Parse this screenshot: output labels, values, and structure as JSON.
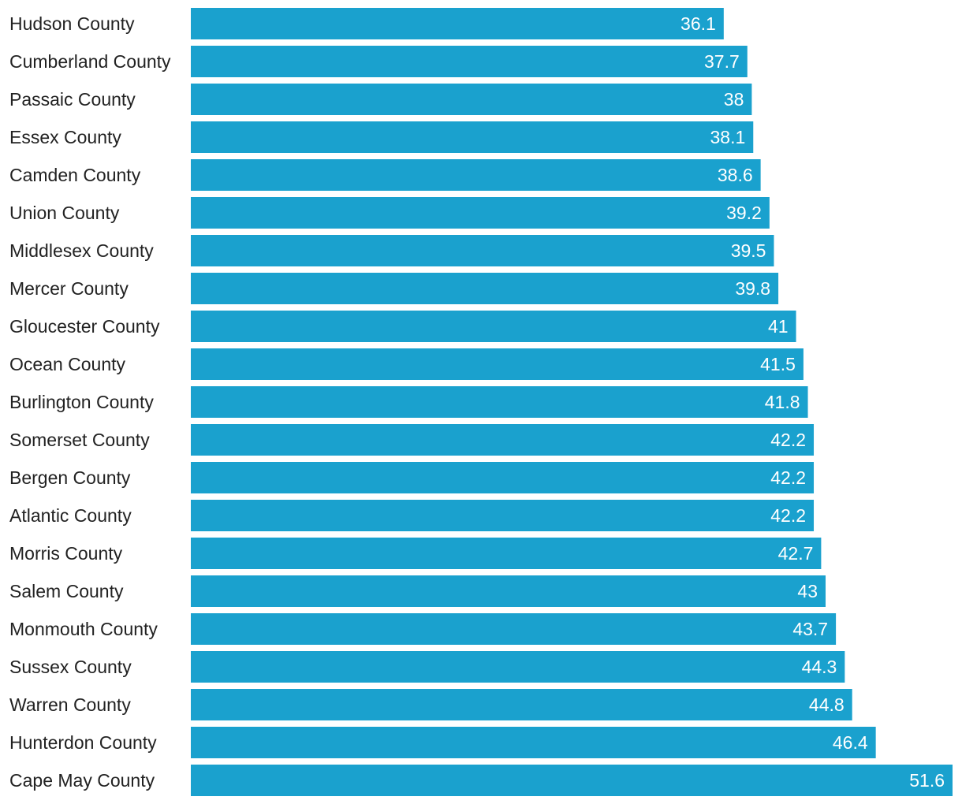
{
  "chart_data": {
    "type": "bar",
    "orientation": "horizontal",
    "categories": [
      "Hudson County",
      "Cumberland County",
      "Passaic County",
      "Essex County",
      "Camden County",
      "Union County",
      "Middlesex County",
      "Mercer County",
      "Gloucester County",
      "Ocean County",
      "Burlington County",
      "Somerset County",
      "Bergen County",
      "Atlantic County",
      "Morris County",
      "Salem County",
      "Monmouth County",
      "Sussex County",
      "Warren County",
      "Hunterdon County",
      "Cape May County"
    ],
    "values": [
      36.1,
      37.7,
      38,
      38.1,
      38.6,
      39.2,
      39.5,
      39.8,
      41,
      41.5,
      41.8,
      42.2,
      42.2,
      42.2,
      42.7,
      43,
      43.7,
      44.3,
      44.8,
      46.4,
      51.6
    ],
    "value_labels": [
      "36.1",
      "37.7",
      "38",
      "38.1",
      "38.6",
      "39.2",
      "39.5",
      "39.8",
      "41",
      "41.5",
      "41.8",
      "42.2",
      "42.2",
      "42.2",
      "42.7",
      "43",
      "43.7",
      "44.3",
      "44.8",
      "46.4",
      "51.6"
    ],
    "xlim": [
      0,
      51.6
    ],
    "grid": false,
    "legend": "none",
    "bar_color": "#1aa1ce",
    "label_color": "#222222",
    "value_label_color": "#ffffff"
  }
}
